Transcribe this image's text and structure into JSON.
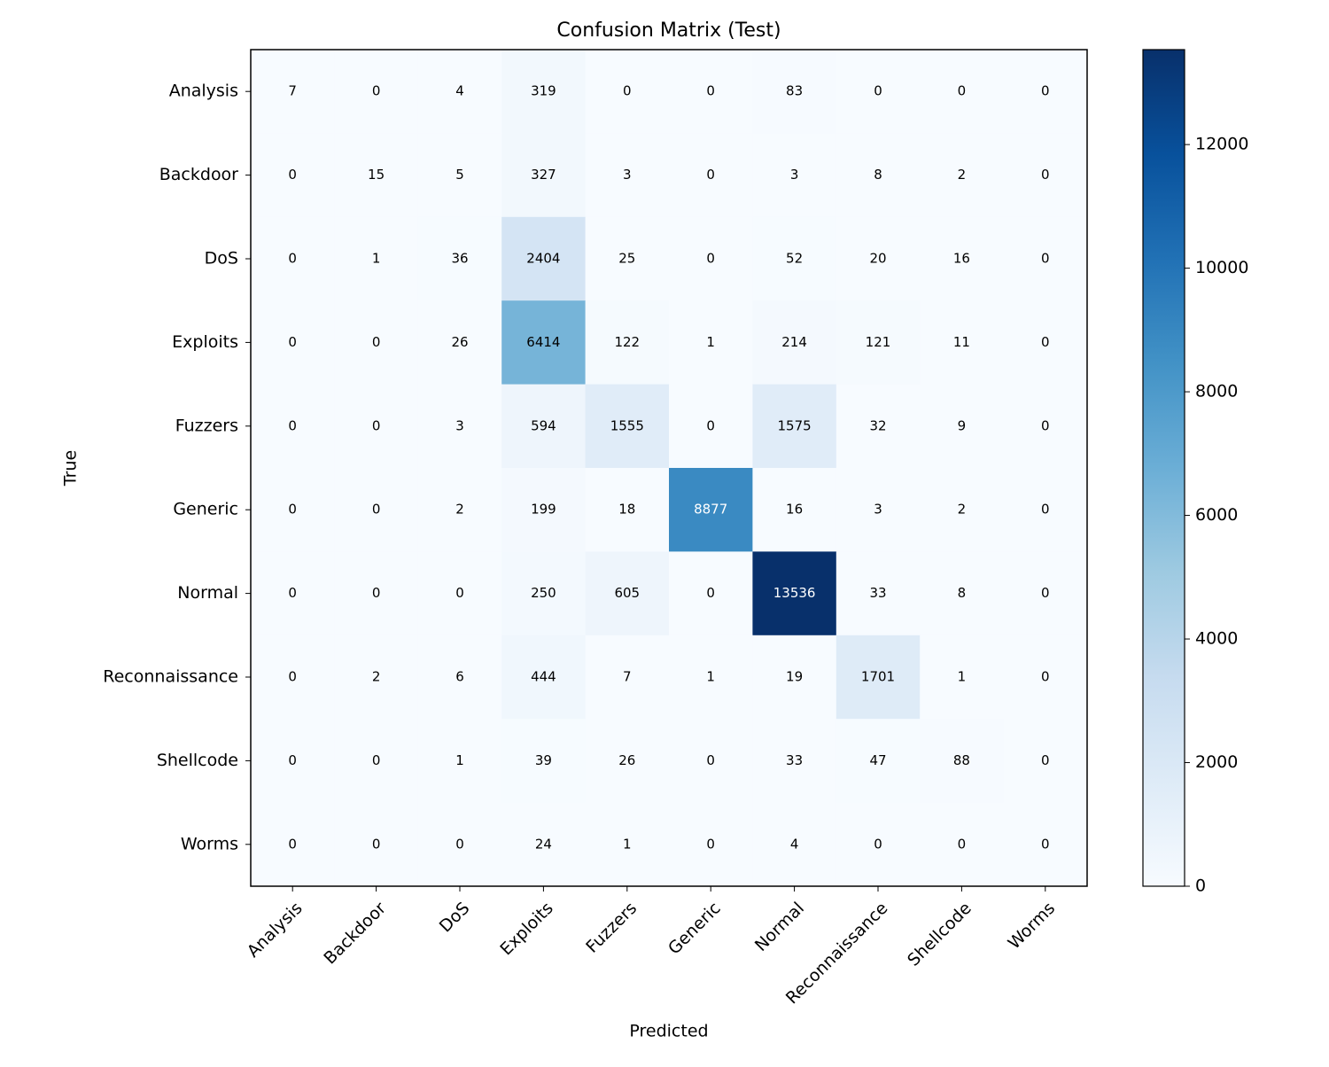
{
  "chart_data": {
    "type": "heatmap",
    "title": "Confusion Matrix (Test)",
    "xlabel": "Predicted",
    "ylabel": "True",
    "x_categories": [
      "Analysis",
      "Backdoor",
      "DoS",
      "Exploits",
      "Fuzzers",
      "Generic",
      "Normal",
      "Reconnaissance",
      "Shellcode",
      "Worms"
    ],
    "y_categories": [
      "Analysis",
      "Backdoor",
      "DoS",
      "Exploits",
      "Fuzzers",
      "Generic",
      "Normal",
      "Reconnaissance",
      "Shellcode",
      "Worms"
    ],
    "values": [
      [
        7,
        0,
        4,
        319,
        0,
        0,
        83,
        0,
        0,
        0
      ],
      [
        0,
        15,
        5,
        327,
        3,
        0,
        3,
        8,
        2,
        0
      ],
      [
        0,
        1,
        36,
        2404,
        25,
        0,
        52,
        20,
        16,
        0
      ],
      [
        0,
        0,
        26,
        6414,
        122,
        1,
        214,
        121,
        11,
        0
      ],
      [
        0,
        0,
        3,
        594,
        1555,
        0,
        1575,
        32,
        9,
        0
      ],
      [
        0,
        0,
        2,
        199,
        18,
        8877,
        16,
        3,
        2,
        0
      ],
      [
        0,
        0,
        0,
        250,
        605,
        0,
        13536,
        33,
        8,
        0
      ],
      [
        0,
        2,
        6,
        444,
        7,
        1,
        19,
        1701,
        1,
        0
      ],
      [
        0,
        0,
        1,
        39,
        26,
        0,
        33,
        47,
        88,
        0
      ],
      [
        0,
        0,
        0,
        24,
        1,
        0,
        4,
        0,
        0,
        0
      ]
    ],
    "colormap": [
      "#f7fbff",
      "#deebf7",
      "#c6dbef",
      "#9ecae1",
      "#6baed6",
      "#4292c6",
      "#2171b5",
      "#08519c",
      "#08306b"
    ],
    "colorbar": {
      "lim": [
        0,
        13536
      ],
      "ticks": [
        0,
        2000,
        4000,
        6000,
        8000,
        10000,
        12000
      ]
    }
  }
}
